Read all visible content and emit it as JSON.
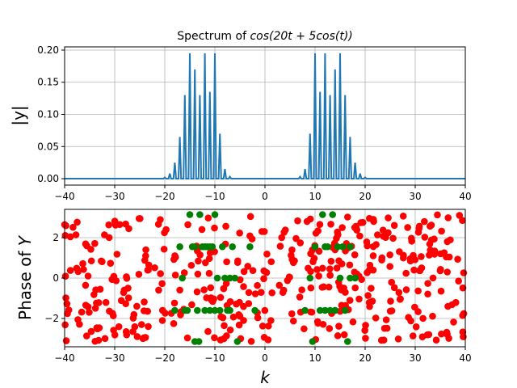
{
  "chart_data": [
    {
      "type": "line",
      "title_prefix": "Spectrum of ",
      "title_math": "cos(20t + 5cos(t))",
      "xlabel": "",
      "ylabel": "|y|",
      "xlim": [
        -40,
        40
      ],
      "ylim": [
        -0.01,
        0.205
      ],
      "xticks": [
        -40,
        -30,
        -20,
        -10,
        0,
        10,
        20,
        30,
        40
      ],
      "xtick_labels": [
        "−40",
        "−30",
        "−20",
        "−10",
        "0",
        "10",
        "20",
        "30",
        "40"
      ],
      "yticks": [
        0.0,
        0.05,
        0.1,
        0.15,
        0.2
      ],
      "ytick_labels": [
        "0.00",
        "0.05",
        "0.10",
        "0.15",
        "0.20"
      ],
      "grid": true,
      "line_color": "#1f77b4",
      "series": [
        {
          "x": [
            -26,
            -25,
            -24,
            -23,
            -22,
            -21,
            -20,
            -19,
            -18,
            -17,
            -16,
            -15,
            -14,
            -13,
            -12,
            -11,
            -10,
            -9,
            -8,
            -7,
            -6,
            -5,
            -4,
            -3,
            -2,
            -1,
            0,
            1,
            2,
            3,
            4,
            5,
            6,
            7,
            8,
            9,
            10,
            11,
            12,
            13,
            14,
            15,
            16,
            17,
            18,
            19,
            20,
            21,
            22,
            23,
            24,
            25,
            26
          ],
          "y": [
            0,
            0,
            0,
            0,
            0,
            0,
            0.002,
            0.008,
            0.025,
            0.065,
            0.13,
            0.195,
            0.17,
            0.13,
            0.195,
            0.135,
            0.195,
            0.07,
            0.015,
            0.003,
            0,
            0,
            0,
            0,
            0,
            0,
            0,
            0,
            0,
            0,
            0,
            0,
            0,
            0.003,
            0.015,
            0.07,
            0.195,
            0.135,
            0.195,
            0.13,
            0.17,
            0.195,
            0.13,
            0.065,
            0.025,
            0.008,
            0.002,
            0,
            0,
            0,
            0,
            0,
            0
          ]
        }
      ]
    },
    {
      "type": "scatter",
      "xlabel": "k",
      "ylabel_prefix": "Phase of ",
      "ylabel_var": "Y",
      "xlim": [
        -40,
        40
      ],
      "ylim": [
        -3.4,
        3.4
      ],
      "xticks": [
        -40,
        -30,
        -20,
        -10,
        0,
        10,
        20,
        30,
        40
      ],
      "xtick_labels": [
        "−40",
        "−30",
        "−20",
        "−10",
        "0",
        "10",
        "20",
        "30",
        "40"
      ],
      "yticks": [
        -2,
        0,
        2
      ],
      "ytick_labels": [
        "−2",
        "0",
        "2"
      ],
      "grid": true,
      "colors": {
        "noise": "#ff0000",
        "signal": "#008000"
      },
      "series": [
        {
          "name": "",
          "color": "#008000",
          "x": [
            -16.5,
            -16,
            -15.5,
            -14.5,
            -14,
            -13.5,
            -13,
            -12.5,
            -12,
            -11.5,
            -11,
            -10.5,
            -10,
            -9.5,
            -9,
            -8.5,
            -8,
            -7.5,
            -7,
            -6.5,
            -6,
            -5.5,
            -17,
            -18,
            -15,
            -13.2,
            -11,
            -10,
            -7,
            -3,
            -2,
            8,
            9,
            10,
            11,
            11.5,
            12,
            12.5,
            13,
            13.5,
            14,
            14.5,
            15,
            15.5,
            16,
            16.5,
            17,
            18,
            9.5,
            12,
            14,
            17,
            -14,
            -12
          ],
          "y": [
            0,
            -1.6,
            -1.6,
            1.55,
            1.55,
            -1.6,
            3.14,
            1.55,
            -1.6,
            1.55,
            -1.6,
            1.55,
            3.14,
            0,
            -1.6,
            1.55,
            0,
            -1.6,
            -1.6,
            1.55,
            0,
            -3.14,
            1.55,
            -1.6,
            3.14,
            -3.14,
            1.55,
            -1.6,
            0,
            1.55,
            -1.6,
            -1.6,
            0,
            1.55,
            -1.6,
            3.14,
            -1.6,
            1.55,
            -1.6,
            3.14,
            -1.6,
            1.55,
            0,
            1.55,
            -1.6,
            -3.14,
            0,
            0,
            -3.14,
            1.55,
            -1.6,
            1.55,
            -3.14,
            1.55
          ]
        },
        {
          "name": "",
          "color": "#ff0000",
          "x": [],
          "y": []
        }
      ]
    }
  ]
}
